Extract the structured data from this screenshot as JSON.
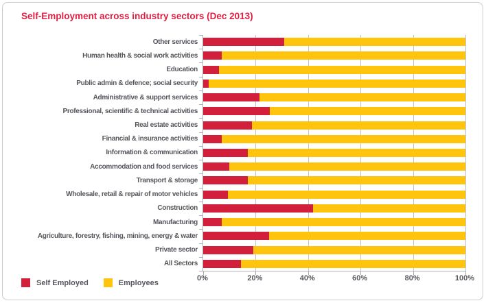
{
  "title": "Self-Employment across industry sectors (Dec 2013)",
  "colors": {
    "title_red": "#e01e41",
    "self_employed_red": "#d2203c",
    "employees_yellow": "#ffc40d",
    "label_gray": "#54565b",
    "axis_gray": "#aeafb3",
    "grid_gray": "#c5c6ca",
    "frame_border": "#c9cbcf"
  },
  "chart_data": {
    "type": "bar",
    "orientation": "horizontal",
    "stacked": true,
    "title": "Self-Employment across industry sectors (Dec 2013)",
    "categories": [
      "Other services",
      "Human health & social work activities",
      "Education",
      "Public admin & defence; social security",
      "Administrative & support services",
      "Professional, scientific & technical activities",
      "Real estate activities",
      "Financial & insurance activities",
      "Information &  communication",
      "Accommodation and food services",
      "Transport & storage",
      "Wholesale, retail & repair of motor vehicles",
      "Construction",
      "Manufacturing",
      "Agriculture, forestry, fishing, mining, energy & water",
      "Private sector",
      "All Sectors"
    ],
    "series": [
      {
        "name": "Self Employed",
        "color": "#d2203c",
        "values": [
          31,
          7,
          6,
          2,
          21.5,
          25.5,
          18.5,
          7,
          17,
          10,
          17,
          9.5,
          42,
          7,
          25,
          19,
          14.5
        ]
      },
      {
        "name": "Employees",
        "color": "#ffc40d",
        "values": [
          69,
          93,
          94,
          98,
          78.5,
          74.5,
          81.5,
          93,
          83,
          90,
          83,
          90.5,
          58,
          93,
          75,
          81,
          85.5
        ]
      }
    ],
    "x_axis": {
      "min": 0,
      "max": 100,
      "tick_values": [
        0,
        20,
        40,
        60,
        80,
        100
      ],
      "tick_labels": [
        "0%",
        "20%",
        "40%",
        "60%",
        "80%",
        "100%"
      ]
    },
    "grid": "vertical gridlines at 20% intervals",
    "legend_position": "bottom-left"
  }
}
